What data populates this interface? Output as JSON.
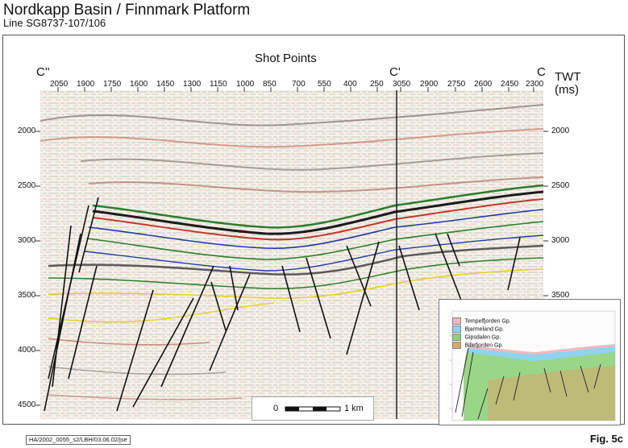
{
  "title": "Nordkapp Basin / Finnmark Platform",
  "subtitle": "Line SG8737-107/106",
  "header": {
    "shot_points_label": "Shot Points",
    "left_marker": "C''",
    "mid_marker": "C'",
    "right_marker": "C",
    "shot_points": [
      "2050",
      "1900",
      "1750",
      "1600",
      "1450",
      "1300",
      "1150",
      "1000",
      "850",
      "700",
      "550",
      "400",
      "250",
      "3050",
      "2900",
      "2750",
      "2600",
      "2450",
      "2300"
    ]
  },
  "twt": {
    "label_line1": "TWT",
    "label_line2": "(ms)",
    "left_ticks": [
      "2000",
      "2500",
      "3000",
      "3500",
      "4000",
      "4500"
    ],
    "right_ticks": [
      "2000",
      "2500",
      "3000",
      "3500"
    ]
  },
  "scale_bar": {
    "start": "0",
    "end": "1 km"
  },
  "inset_legend": [
    {
      "label": "Tempelfjorden Gp.",
      "color": "#f2b8bf"
    },
    {
      "label": "Bjarmeland Gp.",
      "color": "#8fd3f0"
    },
    {
      "label": "Gipsdalen Gp.",
      "color": "#8ed17a"
    },
    {
      "label": "Billefjorden Gp.",
      "color": "#d9a86c"
    }
  ],
  "footer_ref": "HA/2002_0055_s2/LBH/03.06.02/jse",
  "figure_label": "Fig. 5c"
}
